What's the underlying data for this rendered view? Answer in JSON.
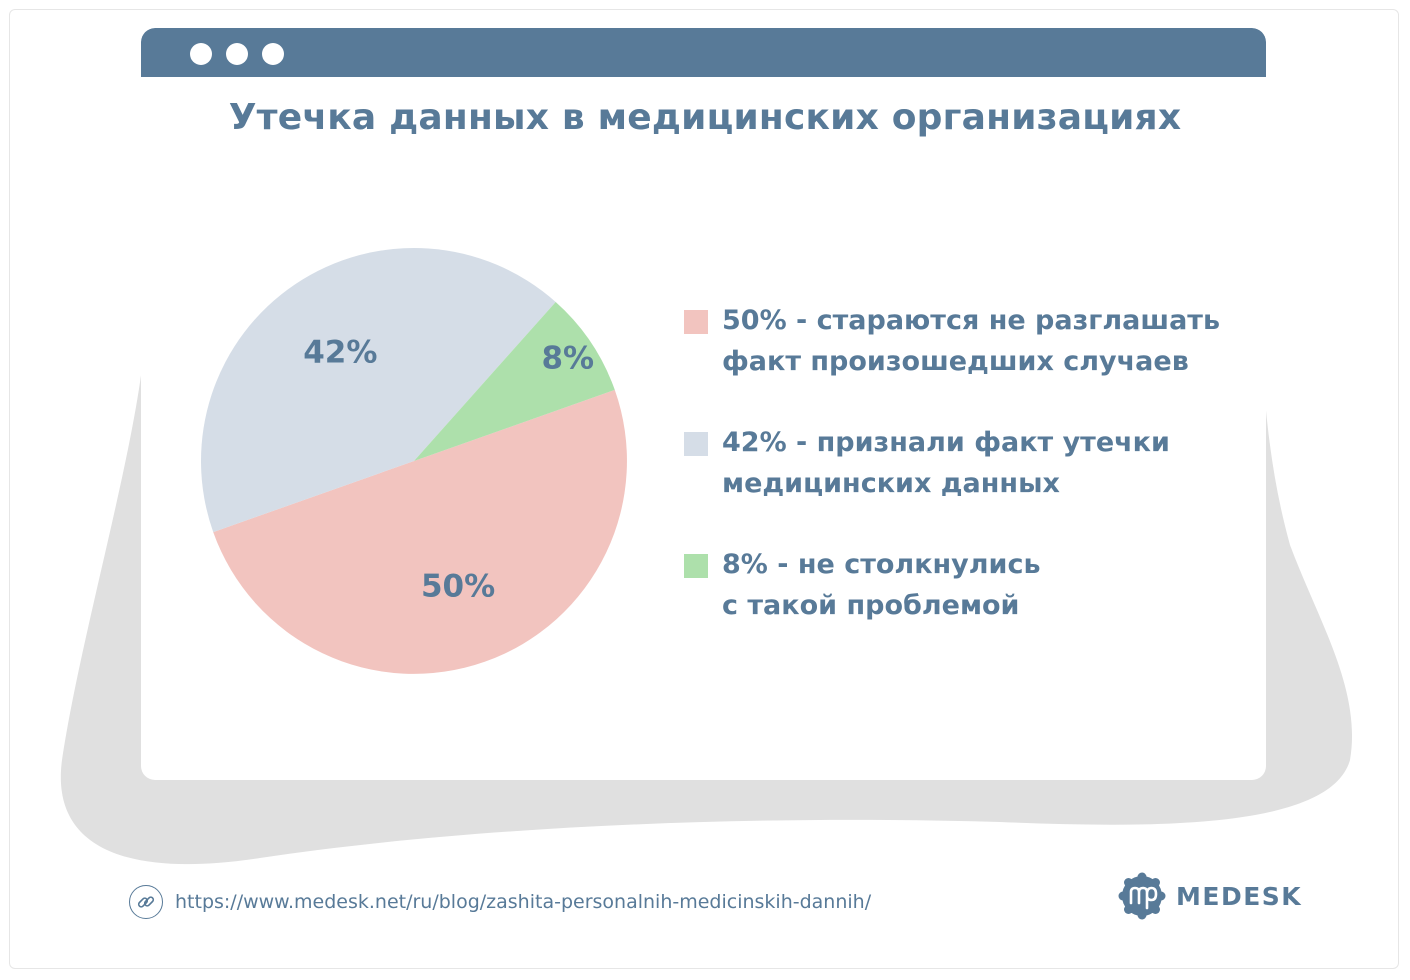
{
  "window": {
    "controls": [
      "dot",
      "dot",
      "dot"
    ]
  },
  "chart_data": {
    "type": "pie",
    "title": "Утечка данных в медицинских организациях",
    "slices": [
      {
        "label": "50%",
        "value": 50,
        "legend_lines": [
          "50% - стараются не разглашать",
          "факт произошедших случаев"
        ],
        "color": "#f2c4bf"
      },
      {
        "label": "42%",
        "value": 42,
        "legend_lines": [
          "42% - признали факт утечки",
          "медицинских данных"
        ],
        "color": "#d5dde7"
      },
      {
        "label": "8%",
        "value": 8,
        "legend_lines": [
          "8% - не столкнулись",
          "с такой проблемой"
        ],
        "color": "#ade0ab"
      }
    ]
  },
  "footer": {
    "link_icon": "link-icon",
    "url": "https://www.medesk.net/ru/blog/zashita-personalnih-medicinskih-dannih/",
    "brand_name": "MEDESK",
    "brand_logo": "medesk-logo-icon"
  },
  "colors": {
    "accent": "#587a98",
    "shadow": "#e0e0e0"
  }
}
